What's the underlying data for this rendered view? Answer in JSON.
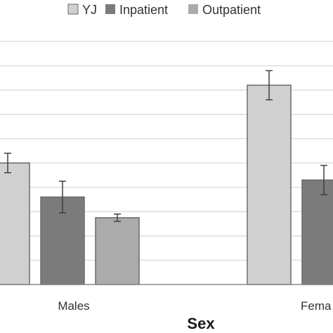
{
  "chart_data": {
    "type": "bar",
    "title": "",
    "xlabel": "Sex",
    "ylabel": "",
    "categories": [
      "Males",
      "Females"
    ],
    "category_labels_visible": [
      "Males",
      "Fema"
    ],
    "series": [
      {
        "name": "YJ",
        "color": "#d0d0d0",
        "values": [
          50,
          82
        ],
        "error": [
          4,
          6
        ]
      },
      {
        "name": "Inpatient",
        "color": "#7b7b7b",
        "values": [
          36,
          43
        ],
        "error": [
          6.5,
          6
        ]
      },
      {
        "name": "Outpatient",
        "color": "#ababab",
        "values": [
          27.5,
          null
        ],
        "error": [
          1.5,
          null
        ]
      }
    ],
    "ylim": [
      0,
      100
    ],
    "grid": true,
    "legend_position": "top"
  }
}
